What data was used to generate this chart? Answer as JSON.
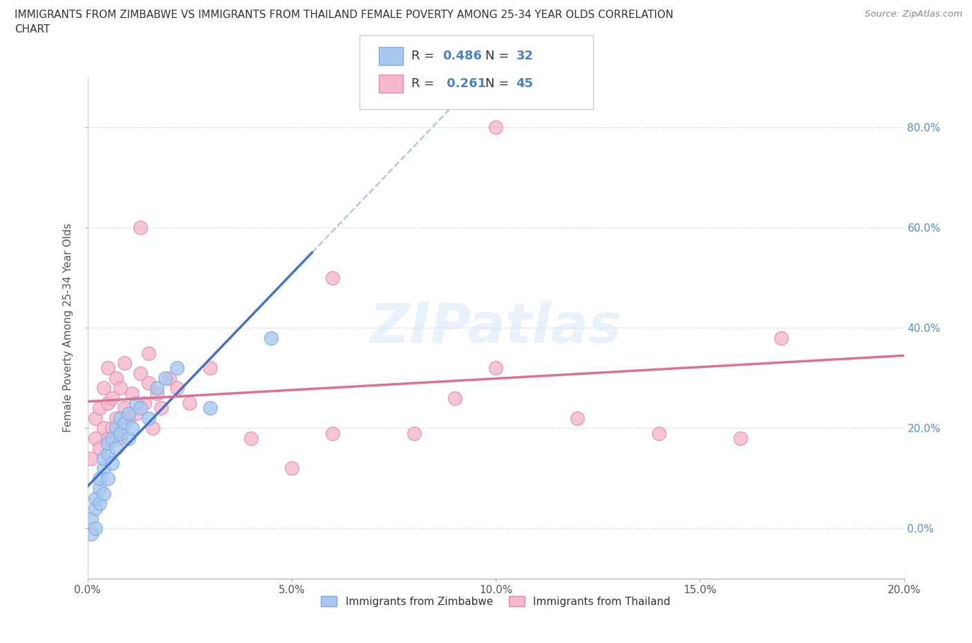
{
  "title_line1": "IMMIGRANTS FROM ZIMBABWE VS IMMIGRANTS FROM THAILAND FEMALE POVERTY AMONG 25-34 YEAR OLDS CORRELATION",
  "title_line2": "CHART",
  "source": "Source: ZipAtlas.com",
  "ylabel": "Female Poverty Among 25-34 Year Olds",
  "background_color": "#ffffff",
  "watermark": "ZIPatlas",
  "zimbabwe_color": "#a8c8f0",
  "thailand_color": "#f5b8cc",
  "zimbabwe_edge": "#7aabdf",
  "thailand_edge": "#e888aa",
  "zimbabwe_line_color": "#4472c4",
  "thailand_line_color": "#e07090",
  "dashed_line_color": "#b0c8e8",
  "R_zimbabwe": 0.486,
  "N_zimbabwe": 32,
  "R_thailand": 0.261,
  "N_thailand": 45,
  "xlim": [
    0.0,
    0.2
  ],
  "ylim": [
    -0.1,
    0.9
  ],
  "xticks": [
    0.0,
    0.05,
    0.1,
    0.15,
    0.2
  ],
  "yticks": [
    0.0,
    0.2,
    0.4,
    0.6,
    0.8
  ],
  "zimbabwe_x": [
    0.001,
    0.001,
    0.002,
    0.002,
    0.002,
    0.003,
    0.003,
    0.003,
    0.004,
    0.004,
    0.004,
    0.005,
    0.005,
    0.005,
    0.006,
    0.006,
    0.007,
    0.007,
    0.008,
    0.008,
    0.009,
    0.01,
    0.01,
    0.011,
    0.012,
    0.013,
    0.015,
    0.017,
    0.019,
    0.022,
    0.03,
    0.045
  ],
  "zimbabwe_y": [
    -0.01,
    0.02,
    0.04,
    0.06,
    0.0,
    0.05,
    0.08,
    0.1,
    0.07,
    0.12,
    0.14,
    0.1,
    0.15,
    0.17,
    0.13,
    0.18,
    0.16,
    0.2,
    0.19,
    0.22,
    0.21,
    0.18,
    0.23,
    0.2,
    0.25,
    0.24,
    0.22,
    0.28,
    0.3,
    0.32,
    0.24,
    0.38
  ],
  "thailand_x": [
    0.001,
    0.002,
    0.002,
    0.003,
    0.003,
    0.004,
    0.004,
    0.005,
    0.005,
    0.005,
    0.006,
    0.006,
    0.007,
    0.007,
    0.008,
    0.008,
    0.009,
    0.009,
    0.01,
    0.011,
    0.012,
    0.013,
    0.014,
    0.015,
    0.015,
    0.016,
    0.017,
    0.018,
    0.02,
    0.022,
    0.025,
    0.03,
    0.04,
    0.05,
    0.06,
    0.08,
    0.09,
    0.1,
    0.12,
    0.14,
    0.16,
    0.17,
    0.013,
    0.06,
    0.1
  ],
  "thailand_y": [
    0.14,
    0.18,
    0.22,
    0.16,
    0.24,
    0.2,
    0.28,
    0.18,
    0.25,
    0.32,
    0.2,
    0.26,
    0.22,
    0.3,
    0.18,
    0.28,
    0.24,
    0.33,
    0.22,
    0.27,
    0.23,
    0.31,
    0.25,
    0.29,
    0.35,
    0.2,
    0.27,
    0.24,
    0.3,
    0.28,
    0.25,
    0.32,
    0.18,
    0.12,
    0.19,
    0.19,
    0.26,
    0.32,
    0.22,
    0.19,
    0.18,
    0.38,
    0.6,
    0.5,
    0.8
  ]
}
